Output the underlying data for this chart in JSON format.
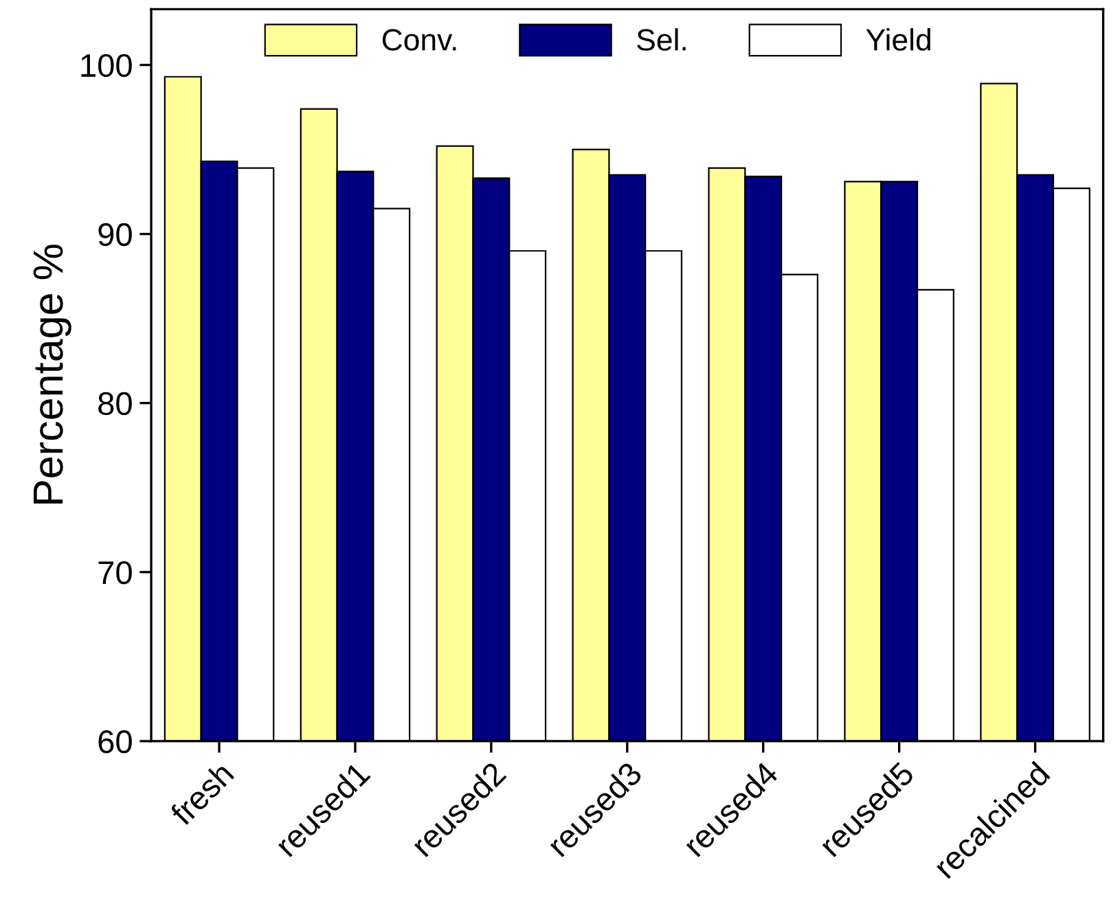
{
  "chart_data": {
    "type": "bar",
    "ylabel": "Percentage %",
    "categories": [
      "fresh",
      "reused1",
      "reused2",
      "reused3",
      "reused4",
      "reused5",
      "recalcined"
    ],
    "series": [
      {
        "name": "Conv.",
        "color": "#ffff99",
        "values": [
          99.3,
          97.4,
          95.2,
          95.0,
          93.9,
          93.1,
          98.9
        ]
      },
      {
        "name": "Sel.",
        "color": "#000080",
        "values": [
          94.3,
          93.7,
          93.3,
          93.5,
          93.4,
          93.1,
          93.5
        ]
      },
      {
        "name": "Yield",
        "color": "#ffffff",
        "values": [
          93.9,
          91.5,
          89.0,
          89.0,
          87.6,
          86.7,
          92.7
        ]
      }
    ],
    "ylim": [
      60,
      103.3
    ],
    "yticks": [
      60,
      70,
      80,
      90,
      100
    ],
    "grid": false,
    "legend": "top"
  }
}
